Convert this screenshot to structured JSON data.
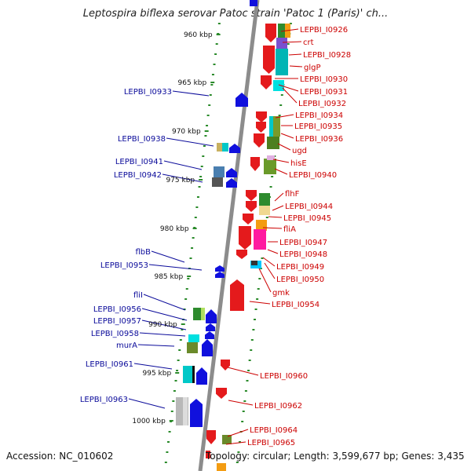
{
  "title": "Leptospira biflexa serovar Patoc strain 'Patoc 1 (Paris)' ch...",
  "footer": {
    "accession": "Accession: NC_010602",
    "topology": "Topology: circular; Length: 3,599,677 bp; Genes: 3,435"
  },
  "scale_labels": [
    "960 kbp",
    "965 kbp",
    "970 kbp",
    "975 kbp",
    "980 kbp",
    "985 kbp",
    "990 kbp",
    "995 kbp",
    "1000 kbp"
  ],
  "left_genes": [
    "LEPBI_I0933",
    "LEPBI_I0938",
    "LEPBI_I0941",
    "LEPBI_I0942",
    "flbB",
    "LEPBI_I0953",
    "fliI",
    "LEPBI_I0956",
    "LEPBI_I0957",
    "LEPBI_I0958",
    "murA",
    "LEPBI_I0961",
    "LEPBI_I0963"
  ],
  "right_genes": [
    "LEPBI_I0926",
    "crt",
    "LEPBI_I0928",
    "glgP",
    "LEPBI_I0930",
    "LEPBI_I0931",
    "LEPBI_I0932",
    "LEPBI_I0934",
    "LEPBI_I0935",
    "LEPBI_I0936",
    "ugd",
    "hisE",
    "LEPBI_I0940",
    "flhF",
    "LEPBI_I0944",
    "LEPBI_I0945",
    "fliA",
    "LEPBI_I0947",
    "LEPBI_I0948",
    "LEPBI_I0949",
    "LEPBI_I0950",
    "gmk",
    "LEPBI_I0954",
    "LEPBI_I0960",
    "LEPBI_I0962",
    "LEPBI_I0964",
    "LEPBI_I0965"
  ],
  "colors": {
    "forward": "#e41a1c",
    "reverse": "#1010dd",
    "left_label": "#0a0a9a",
    "right_label": "#cc0000",
    "ruler": "#2a8a2a",
    "backbone": "#8c8c8c"
  }
}
